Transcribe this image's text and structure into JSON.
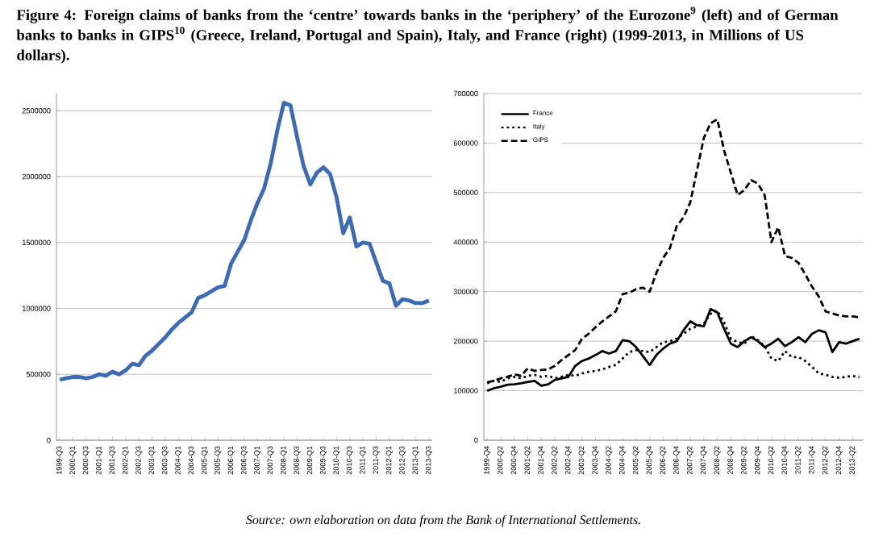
{
  "chart_data": [
    {
      "type": "line",
      "title": "Figure 4: Foreign claims of banks from the ‘centre’ towards banks in the ‘periphery’ of the Eurozone$^{9}$ (left) and of German banks to banks in GIPS$^{10}$ (Greece, Ireland, Portugal and Spain), Italy, and France (right) (1999-2013, in Millions of US dollars).",
      "annotations": [
        "Source: own elaboration on data from the Bank of International Settlements."
      ],
      "categories": [
        "1999-Q3",
        null,
        "2000-Q1",
        null,
        "2000-Q3",
        null,
        "2001-Q1",
        null,
        "2001-Q3",
        null,
        "2002-Q1",
        null,
        "2002-Q3",
        null,
        "2003-Q1",
        null,
        "2003-Q3",
        null,
        "2004-Q1",
        null,
        "2004-Q3",
        null,
        "2005-Q1",
        null,
        "2005-Q3",
        null,
        "2006-Q1",
        null,
        "2006-Q3",
        null,
        "2007-Q1",
        null,
        "2007-Q3",
        null,
        "2008-Q1",
        null,
        "2008-Q3",
        null,
        "2009-Q1",
        null,
        "2009-Q3",
        null,
        "2010-Q1",
        null,
        "2010-Q3",
        null,
        "2011-Q1",
        null,
        "2011-Q3",
        null,
        "2012-Q1",
        null,
        "2012-Q3",
        null,
        "2013-Q1",
        null,
        "2013-Q3"
      ],
      "values": [
        460000,
        470000,
        480000,
        480000,
        470000,
        480000,
        500000,
        490000,
        520000,
        500000,
        530000,
        580000,
        570000,
        640000,
        680000,
        730000,
        780000,
        840000,
        890000,
        930000,
        970000,
        1080000,
        1100000,
        1130000,
        1160000,
        1170000,
        1340000,
        1430000,
        1520000,
        1670000,
        1800000,
        1910000,
        2100000,
        2350000,
        2560000,
        2540000,
        2300000,
        2080000,
        1940000,
        2030000,
        2070000,
        2020000,
        1840000,
        1570000,
        1690000,
        1470000,
        1500000,
        1490000,
        1350000,
        1210000,
        1190000,
        1020000,
        1070000,
        1060000,
        1040000,
        1040000,
        1060000
      ],
      "color": "#3b6bb4",
      "line_style": "solid",
      "ylim": [
        0,
        2630000
      ],
      "yticks": [
        0,
        500000,
        1000000,
        1500000,
        2000000,
        2500000
      ],
      "grid": "y"
    },
    {
      "type": "line",
      "categories": [
        "1999-Q4",
        null,
        "2000-Q2",
        null,
        "2000-Q4",
        null,
        "2001-Q2",
        null,
        "2001-Q4",
        null,
        "2002-Q2",
        null,
        "2002-Q4",
        null,
        "2003-Q2",
        null,
        "2003-Q4",
        null,
        "2004-Q2",
        null,
        "2004-Q4",
        null,
        "2005-Q2",
        null,
        "2005-Q4",
        null,
        "2006-Q2",
        null,
        "2006-Q4",
        null,
        "2007-Q2",
        null,
        "2007-Q4",
        null,
        "2008-Q2",
        null,
        "2008-Q4",
        null,
        "2009-Q2",
        null,
        "2009-Q4",
        null,
        "2010-Q2",
        null,
        "2010-Q4",
        null,
        "2011-Q2",
        null,
        "2011-Q4",
        null,
        "2012-Q2",
        null,
        "2012-Q4",
        null,
        "2013-Q2",
        null
      ],
      "series": [
        {
          "name": "France",
          "color": "#000000",
          "line_style": "solid",
          "values": [
            100000,
            105000,
            108000,
            112000,
            113000,
            115000,
            118000,
            120000,
            110000,
            113000,
            122000,
            125000,
            128000,
            150000,
            160000,
            165000,
            172000,
            180000,
            175000,
            180000,
            202000,
            200000,
            188000,
            170000,
            152000,
            172000,
            185000,
            195000,
            200000,
            222000,
            240000,
            232000,
            230000,
            265000,
            258000,
            225000,
            195000,
            188000,
            200000,
            208000,
            200000,
            188000,
            195000,
            205000,
            190000,
            198000,
            208000,
            198000,
            215000,
            222000,
            218000,
            178000,
            198000,
            195000,
            200000,
            205000
          ]
        },
        {
          "name": "Italy",
          "color": "#000000",
          "line_style": "dotted",
          "values": [
            115000,
            120000,
            118000,
            125000,
            128000,
            125000,
            130000,
            132000,
            128000,
            130000,
            125000,
            128000,
            132000,
            130000,
            135000,
            138000,
            140000,
            143000,
            148000,
            152000,
            165000,
            178000,
            182000,
            180000,
            178000,
            188000,
            198000,
            200000,
            205000,
            215000,
            225000,
            230000,
            235000,
            255000,
            262000,
            238000,
            205000,
            198000,
            195000,
            210000,
            202000,
            190000,
            165000,
            160000,
            180000,
            168000,
            168000,
            160000,
            148000,
            135000,
            132000,
            128000,
            126000,
            128000,
            130000,
            127000
          ]
        },
        {
          "name": "GIPS",
          "color": "#000000",
          "line_style": "dashed",
          "values": [
            117000,
            120000,
            125000,
            128000,
            133000,
            130000,
            145000,
            140000,
            142000,
            143000,
            150000,
            162000,
            172000,
            182000,
            205000,
            215000,
            228000,
            240000,
            250000,
            260000,
            295000,
            298000,
            305000,
            308000,
            300000,
            338000,
            368000,
            388000,
            432000,
            450000,
            480000,
            545000,
            610000,
            640000,
            648000,
            585000,
            540000,
            495000,
            505000,
            525000,
            518000,
            495000,
            400000,
            430000,
            372000,
            368000,
            358000,
            335000,
            310000,
            290000,
            260000,
            256000,
            252000,
            250000,
            250000,
            248000
          ]
        }
      ],
      "ylim": [
        0,
        700000
      ],
      "yticks": [
        0,
        100000,
        200000,
        300000,
        400000,
        500000,
        600000,
        700000
      ],
      "grid": "y",
      "legend": "top left"
    }
  ]
}
